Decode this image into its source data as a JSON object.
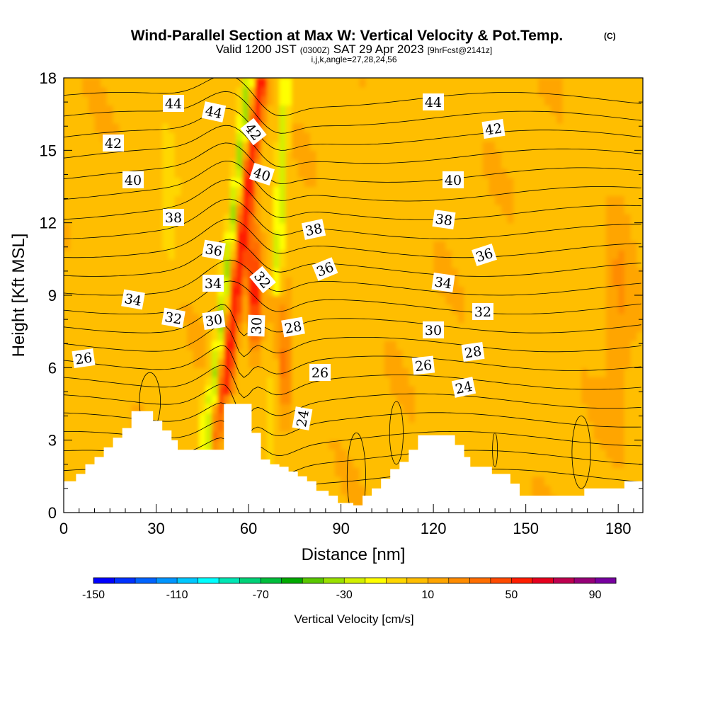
{
  "chart_data": {
    "type": "heatmap",
    "title": "Wind-Parallel Section at Max W: Vertical Velocity & Pot.Temp.",
    "title_mark": "(C)",
    "subtitle_a": "Valid 1200 JST",
    "subtitle_b": "(0300Z)",
    "subtitle_c": "SAT 29 Apr 2023",
    "subtitle_d": "[9hrFcst@2141z]",
    "subtitle2": "i,j,k,angle=27,28,24,56",
    "xlabel": "Distance [nm]",
    "ylabel": "Height [Kft MSL]",
    "xlim": [
      0,
      188
    ],
    "ylim": [
      0,
      18
    ],
    "x_ticks": [
      0,
      30,
      60,
      90,
      120,
      150,
      180
    ],
    "y_ticks": [
      0,
      3,
      6,
      9,
      12,
      15,
      18
    ],
    "colorbar": {
      "label": "Vertical Velocity [cm/s]",
      "min": -150,
      "max": 100,
      "step": 10,
      "tick_values": [
        -150,
        -110,
        -70,
        -30,
        10,
        50,
        90
      ],
      "colors": [
        "#0000ff",
        "#0032ff",
        "#0064ff",
        "#0096ff",
        "#00c8ff",
        "#00ffff",
        "#00e6b4",
        "#00d278",
        "#00be3c",
        "#00aa00",
        "#5ac800",
        "#9ae100",
        "#d2f000",
        "#ffff00",
        "#ffd700",
        "#ffbe00",
        "#ffa500",
        "#ff8c00",
        "#ff6e00",
        "#ff4b00",
        "#ff1e00",
        "#e6001e",
        "#be0050",
        "#960078",
        "#7800a0"
      ]
    },
    "terrain_kft": [
      [
        0,
        1.3
      ],
      [
        4,
        1.3
      ],
      [
        4,
        1.6
      ],
      [
        7,
        1.6
      ],
      [
        7,
        2
      ],
      [
        10,
        2
      ],
      [
        10,
        2.3
      ],
      [
        13,
        2.3
      ],
      [
        13,
        2.7
      ],
      [
        16,
        2.7
      ],
      [
        16,
        3.1
      ],
      [
        19,
        3.1
      ],
      [
        19,
        3.5
      ],
      [
        22,
        3.5
      ],
      [
        22,
        4.2
      ],
      [
        29,
        4.2
      ],
      [
        29,
        3.8
      ],
      [
        32,
        3.8
      ],
      [
        32,
        3.4
      ],
      [
        35,
        3.4
      ],
      [
        35,
        3
      ],
      [
        37,
        3
      ],
      [
        37,
        2.6
      ],
      [
        52,
        2.6
      ],
      [
        52,
        3.5
      ],
      [
        52,
        4.5
      ],
      [
        61,
        4.5
      ],
      [
        61,
        3.3
      ],
      [
        64,
        3.3
      ],
      [
        64,
        2.2
      ],
      [
        67,
        2.2
      ],
      [
        67,
        2
      ],
      [
        70,
        2
      ],
      [
        70,
        1.9
      ],
      [
        73,
        1.9
      ],
      [
        73,
        1.7
      ],
      [
        76,
        1.7
      ],
      [
        76,
        1.5
      ],
      [
        79,
        1.5
      ],
      [
        79,
        1.3
      ],
      [
        82,
        1.3
      ],
      [
        82,
        0.9
      ],
      [
        86,
        0.9
      ],
      [
        86,
        0.7
      ],
      [
        89,
        0.7
      ],
      [
        89,
        0.4
      ],
      [
        94,
        0.4
      ],
      [
        94,
        0.3
      ],
      [
        97,
        0.3
      ],
      [
        97,
        0.7
      ],
      [
        100,
        0.7
      ],
      [
        100,
        1
      ],
      [
        103,
        1
      ],
      [
        103,
        1.4
      ],
      [
        106,
        1.4
      ],
      [
        106,
        1.8
      ],
      [
        109,
        1.8
      ],
      [
        109,
        2.1
      ],
      [
        112,
        2.1
      ],
      [
        112,
        2.6
      ],
      [
        115,
        2.6
      ],
      [
        115,
        3.2
      ],
      [
        127,
        3.2
      ],
      [
        127,
        2.8
      ],
      [
        130,
        2.8
      ],
      [
        130,
        2.3
      ],
      [
        132,
        2.3
      ],
      [
        132,
        1.9
      ],
      [
        139,
        1.9
      ],
      [
        139,
        1.6
      ],
      [
        145,
        1.6
      ],
      [
        145,
        1.2
      ],
      [
        148,
        1.2
      ],
      [
        148,
        0.7
      ],
      [
        169,
        0.7
      ],
      [
        169,
        1
      ],
      [
        182,
        1
      ],
      [
        182,
        1.3
      ],
      [
        188,
        1.3
      ]
    ],
    "theta_contour_labels": [
      "44",
      "44",
      "44",
      "42",
      "42",
      "42",
      "40",
      "40",
      "40",
      "38",
      "38",
      "38",
      "36",
      "36",
      "36",
      "34",
      "34",
      "34",
      "32",
      "32",
      "32",
      "30",
      "30",
      "30",
      "28",
      "28",
      "26",
      "26",
      "26",
      "24",
      "24"
    ],
    "theta_range_K": [
      24,
      44
    ],
    "theta_contour_interval": 1
  }
}
